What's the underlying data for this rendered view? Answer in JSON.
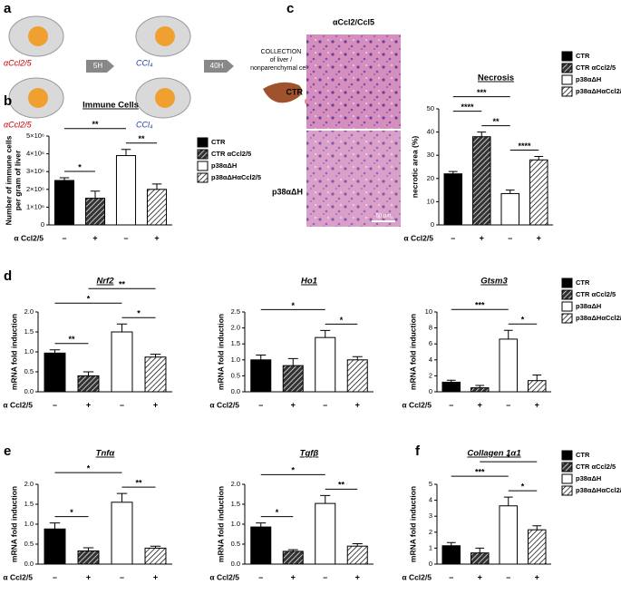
{
  "panel_labels": [
    "a",
    "b",
    "c",
    "d",
    "e",
    "f"
  ],
  "schematic": {
    "treatment_top": "αCcl2/5",
    "ccl4_top": "CCl₄",
    "treatment_bottom": "αCcl2/5",
    "ccl4_bottom": "CCl₄",
    "interval_1": "5H",
    "interval_2": "40H",
    "collection": [
      "COLLECTION",
      "of liver /",
      "nonparenchymal cells"
    ]
  },
  "histology": {
    "title": "αCcl2/Ccl5",
    "rows": [
      "CTR",
      "p38αΔH"
    ],
    "scale_bar": "50 µm"
  },
  "chart_data": [
    {
      "type": "bar",
      "title": "Immune Cells",
      "ylabel": [
        "Number of immune cells",
        "per gram of liver"
      ],
      "xlabel": "α Ccl2/5",
      "categories": [
        "–",
        "+",
        "–",
        "+"
      ],
      "values": [
        2500000,
        1500000,
        3900000,
        2000000
      ],
      "errors": [
        150000,
        400000,
        350000,
        300000
      ],
      "bar_colors": [
        "#000000",
        "#333333",
        "#ffffff",
        "#ffffff"
      ],
      "hatched": [
        false,
        true,
        false,
        true
      ],
      "ylim": [
        0,
        5000000
      ],
      "yticks": [
        0,
        {
          "value": 1000000,
          "label": "1×10⁶"
        },
        {
          "value": 2000000,
          "label": "2×10⁶"
        },
        {
          "value": 3000000,
          "label": "3×10⁶"
        },
        {
          "value": 4000000,
          "label": "4×10⁶"
        },
        {
          "value": 5000000,
          "label": "5×10⁶"
        }
      ],
      "annotations": [
        {
          "text": "*",
          "from": 0,
          "to": 1
        },
        {
          "text": "**",
          "from": 2,
          "to": 3
        },
        {
          "text": "**",
          "from": 0,
          "to": 2
        }
      ],
      "legend": [
        "CTR",
        "CTR αCcl2/5",
        "p38αΔH",
        "p38αΔHαCcl2/5"
      ]
    },
    {
      "type": "bar",
      "title": "Necrosis",
      "ylabel": "necrotic area (%)",
      "xlabel": "α Ccl2/5",
      "categories": [
        "–",
        "+",
        "–",
        "+"
      ],
      "values": [
        22,
        38,
        13.5,
        28
      ],
      "errors": [
        1,
        2,
        1.5,
        1.5
      ],
      "bar_colors": [
        "#000000",
        "#333333",
        "#ffffff",
        "#ffffff"
      ],
      "hatched": [
        false,
        true,
        false,
        true
      ],
      "ylim": [
        0,
        50
      ],
      "yticks": [
        0,
        10,
        20,
        30,
        40,
        50
      ],
      "annotations": [
        {
          "text": "****",
          "from": 2,
          "to": 3
        },
        {
          "text": "**",
          "from": 1,
          "to": 2
        },
        {
          "text": "****",
          "from": 0,
          "to": 1
        },
        {
          "text": "***",
          "from": 0,
          "to": 2
        }
      ],
      "legend": [
        "CTR",
        "CTR αCcl2/5",
        "p38αΔH",
        "p38αΔHαCcl2/5"
      ]
    },
    {
      "type": "bar",
      "title": "Nrf2",
      "ylabel": "mRNA fold induction",
      "xlabel": "α Ccl2/5",
      "categories": [
        "–",
        "+",
        "–",
        "+"
      ],
      "values": [
        0.97,
        0.4,
        1.5,
        0.87
      ],
      "errors": [
        0.08,
        0.1,
        0.2,
        0.07
      ],
      "bar_colors": [
        "#000000",
        "#333333",
        "#ffffff",
        "#ffffff"
      ],
      "hatched": [
        false,
        true,
        false,
        true
      ],
      "ylim": [
        0,
        2
      ],
      "yticks": [
        {
          "value": 0,
          "label": "0.0"
        },
        0.5,
        {
          "value": 1,
          "label": "1.0"
        },
        1.5,
        {
          "value": 2,
          "label": "2.0"
        }
      ],
      "annotations": [
        {
          "text": "**",
          "from": 0,
          "to": 1
        },
        {
          "text": "*",
          "from": 2,
          "to": 3
        },
        {
          "text": "*",
          "from": 0,
          "to": 2
        },
        {
          "text": "**",
          "from": 1,
          "to": 3
        }
      ]
    },
    {
      "type": "bar",
      "title": "Ho1",
      "ylabel": "mRNA fold induction",
      "xlabel": "α Ccl2/5",
      "categories": [
        "–",
        "+",
        "–",
        "+"
      ],
      "values": [
        1.0,
        0.82,
        1.7,
        1.0
      ],
      "errors": [
        0.15,
        0.22,
        0.22,
        0.1
      ],
      "bar_colors": [
        "#000000",
        "#333333",
        "#ffffff",
        "#ffffff"
      ],
      "hatched": [
        false,
        true,
        false,
        true
      ],
      "ylim": [
        0,
        2.5
      ],
      "yticks": [
        {
          "value": 0,
          "label": "0.0"
        },
        0.5,
        {
          "value": 1,
          "label": "1.0"
        },
        1.5,
        {
          "value": 2,
          "label": "2.0"
        },
        2.5
      ],
      "annotations": [
        {
          "text": "*",
          "from": 2,
          "to": 3
        },
        {
          "text": "*",
          "from": 0,
          "to": 2
        }
      ]
    },
    {
      "type": "bar",
      "title": "Gtsm3",
      "ylabel": "mRNA fold induction",
      "xlabel": "α Ccl2/5",
      "categories": [
        "–",
        "+",
        "–",
        "+"
      ],
      "values": [
        1.2,
        0.5,
        6.6,
        1.4
      ],
      "errors": [
        0.25,
        0.3,
        1.1,
        0.7
      ],
      "bar_colors": [
        "#000000",
        "#333333",
        "#ffffff",
        "#ffffff"
      ],
      "hatched": [
        false,
        true,
        false,
        true
      ],
      "ylim": [
        0,
        10
      ],
      "yticks": [
        0,
        2,
        4,
        6,
        8,
        10
      ],
      "annotations": [
        {
          "text": "*",
          "from": 2,
          "to": 3
        },
        {
          "text": "***",
          "from": 0,
          "to": 2
        }
      ],
      "legend": [
        "CTR",
        "CTR αCcl2/5",
        "p38αΔH",
        "p38αΔHαCcl2/5"
      ]
    },
    {
      "type": "bar",
      "title": "Tnfα",
      "ylabel": "mRNA fold induction",
      "xlabel": "α Ccl2/5",
      "categories": [
        "–",
        "+",
        "–",
        "+"
      ],
      "values": [
        0.88,
        0.33,
        1.55,
        0.4
      ],
      "errors": [
        0.15,
        0.08,
        0.22,
        0.05
      ],
      "bar_colors": [
        "#000000",
        "#333333",
        "#ffffff",
        "#ffffff"
      ],
      "hatched": [
        false,
        true,
        false,
        true
      ],
      "ylim": [
        0,
        2
      ],
      "yticks": [
        {
          "value": 0,
          "label": "0.0"
        },
        0.5,
        {
          "value": 1,
          "label": "1.0"
        },
        1.5,
        {
          "value": 2,
          "label": "2.0"
        }
      ],
      "annotations": [
        {
          "text": "*",
          "from": 0,
          "to": 1
        },
        {
          "text": "**",
          "from": 2,
          "to": 3
        },
        {
          "text": "*",
          "from": 0,
          "to": 2
        }
      ]
    },
    {
      "type": "bar",
      "title": "Tgfβ",
      "ylabel": "mRNA fold induction",
      "xlabel": "α Ccl2/5",
      "categories": [
        "–",
        "+",
        "–",
        "+"
      ],
      "values": [
        0.93,
        0.32,
        1.52,
        0.45
      ],
      "errors": [
        0.1,
        0.04,
        0.2,
        0.06
      ],
      "bar_colors": [
        "#000000",
        "#333333",
        "#ffffff",
        "#ffffff"
      ],
      "hatched": [
        false,
        true,
        false,
        true
      ],
      "ylim": [
        0,
        2
      ],
      "yticks": [
        {
          "value": 0,
          "label": "0.0"
        },
        0.5,
        {
          "value": 1,
          "label": "1.0"
        },
        1.5,
        {
          "value": 2,
          "label": "2.0"
        }
      ],
      "annotations": [
        {
          "text": "*",
          "from": 0,
          "to": 1
        },
        {
          "text": "**",
          "from": 2,
          "to": 3
        },
        {
          "text": "*",
          "from": 0,
          "to": 2
        }
      ]
    },
    {
      "type": "bar",
      "title": "Collagen 1α1",
      "ylabel": "mRNA fold induction",
      "xlabel": "α Ccl2/5",
      "categories": [
        "–",
        "+",
        "–",
        "+"
      ],
      "values": [
        1.15,
        0.7,
        3.65,
        2.15
      ],
      "errors": [
        0.2,
        0.3,
        0.55,
        0.25
      ],
      "bar_colors": [
        "#000000",
        "#333333",
        "#ffffff",
        "#ffffff"
      ],
      "hatched": [
        false,
        true,
        false,
        true
      ],
      "ylim": [
        0,
        5
      ],
      "yticks": [
        0,
        1,
        2,
        3,
        4,
        5
      ],
      "annotations": [
        {
          "text": "*",
          "from": 2,
          "to": 3
        },
        {
          "text": "***",
          "from": 0,
          "to": 2
        },
        {
          "text": "*",
          "from": 1,
          "to": 3
        }
      ],
      "legend": [
        "CTR",
        "CTR αCcl2/5",
        "p38αΔH",
        "p38αΔHαCcl2/5"
      ]
    }
  ]
}
